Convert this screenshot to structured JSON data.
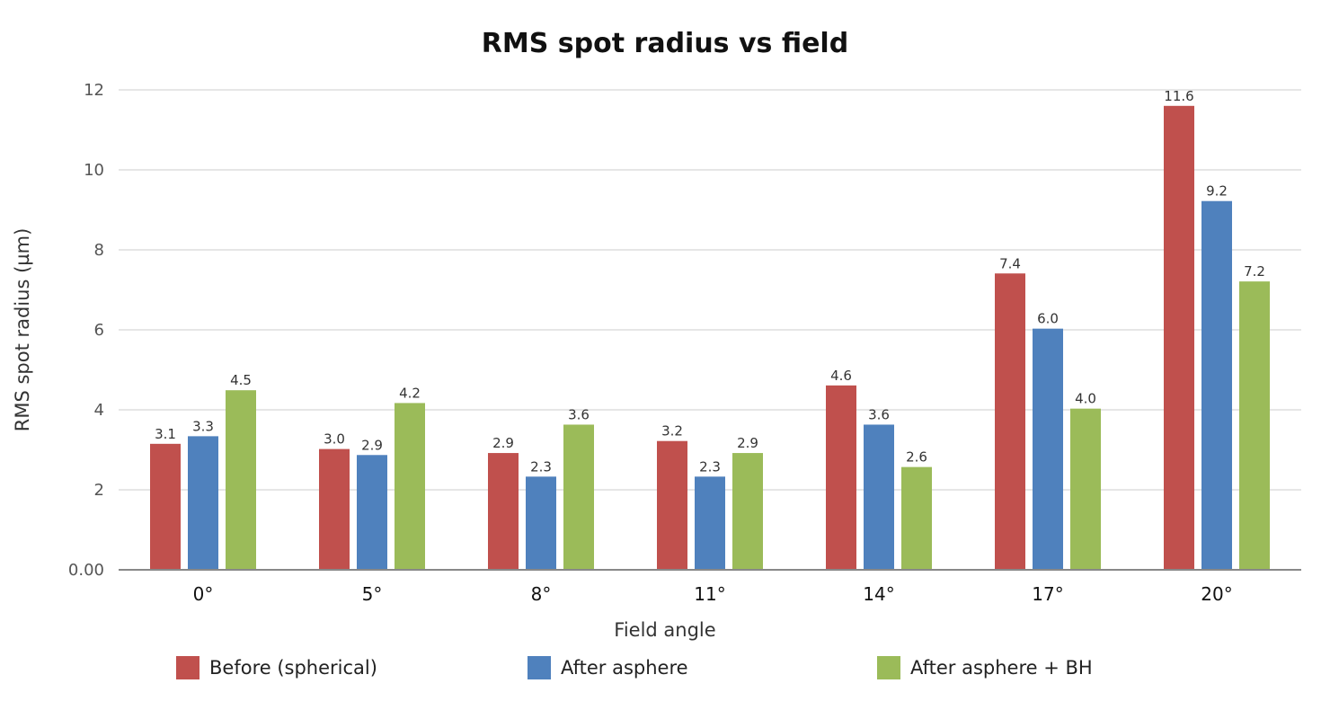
{
  "chart_data": {
    "type": "bar",
    "title": "RMS spot radius vs field",
    "xlabel": "Field angle",
    "ylabel": "RMS spot radius (µm)",
    "ylim": [
      0,
      12
    ],
    "yticks": [
      "0.00",
      "2",
      "4",
      "6",
      "8",
      "10",
      "12"
    ],
    "ytick_values": [
      0,
      2,
      4,
      6,
      8,
      10,
      12
    ],
    "grid": true,
    "legend_position": "bottom",
    "categories": [
      "0°",
      "5°",
      "8°",
      "11°",
      "14°",
      "17°",
      "20°"
    ],
    "series": [
      {
        "name": "Before (spherical)",
        "color": "#c0504d",
        "values": [
          3.15,
          3.02,
          2.92,
          3.22,
          4.61,
          7.41,
          11.6
        ],
        "labels": [
          "3.1",
          "3.0",
          "2.9",
          "3.2",
          "4.6",
          "7.4",
          "11.6"
        ]
      },
      {
        "name": "After asphere",
        "color": "#4f81bd",
        "values": [
          3.34,
          2.87,
          2.33,
          2.33,
          3.63,
          6.03,
          9.22
        ],
        "labels": [
          "3.3",
          "2.9",
          "2.3",
          "2.3",
          "3.6",
          "6.0",
          "9.2"
        ]
      },
      {
        "name": "After asphere + BH",
        "color": "#9bbb59",
        "values": [
          4.49,
          4.17,
          3.63,
          2.92,
          2.57,
          4.03,
          7.21
        ],
        "labels": [
          "4.5",
          "4.2",
          "3.6",
          "2.9",
          "2.6",
          "4.0",
          "7.2"
        ]
      }
    ]
  }
}
